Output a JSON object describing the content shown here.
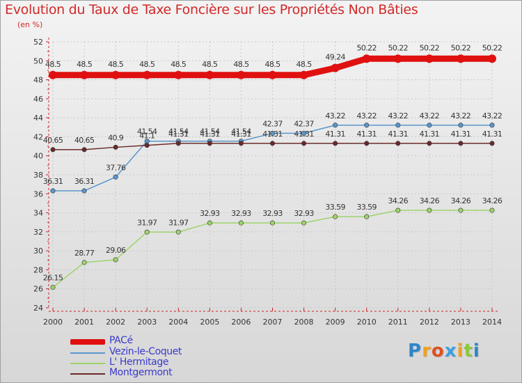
{
  "header": {
    "title": "Evolution du Taux de Taxe Foncière sur les Propriétés Non Bâties",
    "unit": "(en %)"
  },
  "chart_data": {
    "type": "line",
    "title": "Evolution du Taux de Taxe Foncière sur les Propriétés Non Bâties",
    "ylabel": "(en %)",
    "xlabel": "",
    "categories": [
      "2000",
      "2001",
      "2002",
      "2003",
      "2004",
      "2005",
      "2006",
      "2007",
      "2008",
      "2009",
      "2010",
      "2011",
      "2012",
      "2013",
      "2014"
    ],
    "ylim": [
      24,
      52
    ],
    "yticks": [
      24,
      26,
      28,
      30,
      32,
      34,
      36,
      38,
      40,
      42,
      44,
      46,
      48,
      50,
      52
    ],
    "grid": true,
    "series": [
      {
        "name": "PACé",
        "color": "#e01010",
        "emphasis": true,
        "values": [
          48.5,
          48.5,
          48.5,
          48.5,
          48.5,
          48.5,
          48.5,
          48.5,
          48.5,
          49.24,
          50.22,
          50.22,
          50.22,
          50.22,
          50.22
        ],
        "labels": [
          "48.5",
          "48.5",
          "48.5",
          "48.5",
          "48.5",
          "48.5",
          "48.5",
          "48.5",
          "48.5",
          "49.24",
          "50.22",
          "50.22",
          "50.22",
          "50.22",
          "50.22"
        ]
      },
      {
        "name": "Vezin-le-Coquet",
        "color": "#5a96cc",
        "emphasis": false,
        "values": [
          36.31,
          36.31,
          37.76,
          41.54,
          41.54,
          41.54,
          41.54,
          42.37,
          42.37,
          43.22,
          43.22,
          43.22,
          43.22,
          43.22,
          43.22
        ],
        "labels": [
          "36.31",
          "36.31",
          "37.76",
          "41.54",
          "41.54",
          "41.54",
          "41.54",
          "42.37",
          "42.37",
          "43.22",
          "43.22",
          "43.22",
          "43.22",
          "43.22",
          "43.22"
        ]
      },
      {
        "name": "L' Hermitage",
        "color": "#9ed36a",
        "emphasis": false,
        "values": [
          26.15,
          28.77,
          29.06,
          31.97,
          31.97,
          32.93,
          32.93,
          32.93,
          32.93,
          33.59,
          33.59,
          34.26,
          34.26,
          34.26,
          34.26
        ],
        "labels": [
          "26.15",
          "28.77",
          "29.06",
          "31.97",
          "31.97",
          "32.93",
          "32.93",
          "32.93",
          "32.93",
          "33.59",
          "33.59",
          "34.26",
          "34.26",
          "34.26",
          "34.26"
        ]
      },
      {
        "name": "Montgermont",
        "color": "#6b2a2a",
        "emphasis": false,
        "values": [
          40.65,
          40.65,
          40.9,
          41.1,
          41.31,
          41.31,
          41.31,
          41.31,
          41.31,
          41.31,
          41.31,
          41.31,
          41.31,
          41.31,
          41.31
        ],
        "labels": [
          "40.65",
          "40.65",
          "40.9",
          "41.1",
          "41.31",
          "41.31",
          "41.31",
          "41.31",
          "41.31",
          "41.31",
          "41.31",
          "41.31",
          "41.31",
          "41.31",
          "41.31"
        ]
      }
    ]
  },
  "legend": {
    "items": [
      {
        "label": "PACé"
      },
      {
        "label": "Vezin-le-Coquet"
      },
      {
        "label": "L' Hermitage"
      },
      {
        "label": "Montgermont"
      }
    ]
  },
  "logo": {
    "letters": [
      "P",
      "r",
      "o",
      "x",
      "i",
      "t",
      "i"
    ],
    "colors": [
      "#2e86c8",
      "#f0a020",
      "#e05020",
      "#3aa0e0",
      "#f0a020",
      "#8cc83c",
      "#2e86c8"
    ]
  }
}
